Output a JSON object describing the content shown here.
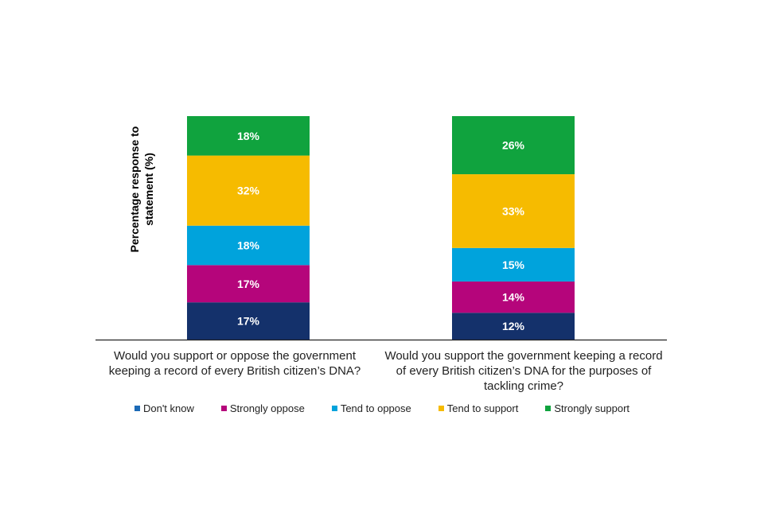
{
  "chart_data": {
    "type": "bar",
    "stacked": true,
    "ylabel": "Percentage response to statement (%)",
    "categories": [
      "Would you support or oppose the government keeping a record of every British citizen’s DNA?",
      "Would you support the government keeping a record of every British citizen’s DNA for the purposes of tackling crime?"
    ],
    "series": [
      {
        "name": "Don't know",
        "color": "#14316b",
        "values": [
          17,
          12
        ],
        "labels": [
          "17%",
          "12%"
        ]
      },
      {
        "name": "Strongly oppose",
        "color": "#b5057b",
        "values": [
          17,
          14
        ],
        "labels": [
          "17%",
          "14%"
        ]
      },
      {
        "name": "Tend to oppose",
        "color": "#00a3dc",
        "values": [
          18,
          15
        ],
        "labels": [
          "18%",
          "15%"
        ]
      },
      {
        "name": "Tend to support",
        "color": "#f6bb00",
        "values": [
          32,
          33
        ],
        "labels": [
          "32%",
          "33%"
        ]
      },
      {
        "name": "Strongly support",
        "color": "#10a33e",
        "values": [
          18,
          26
        ],
        "labels": [
          "18%",
          "26%"
        ]
      }
    ],
    "legend_swatch_colors": [
      "#1c6ab6",
      "#b5057b",
      "#00a3dc",
      "#f6bb00",
      "#10a33e"
    ],
    "legend_position": "bottom"
  }
}
